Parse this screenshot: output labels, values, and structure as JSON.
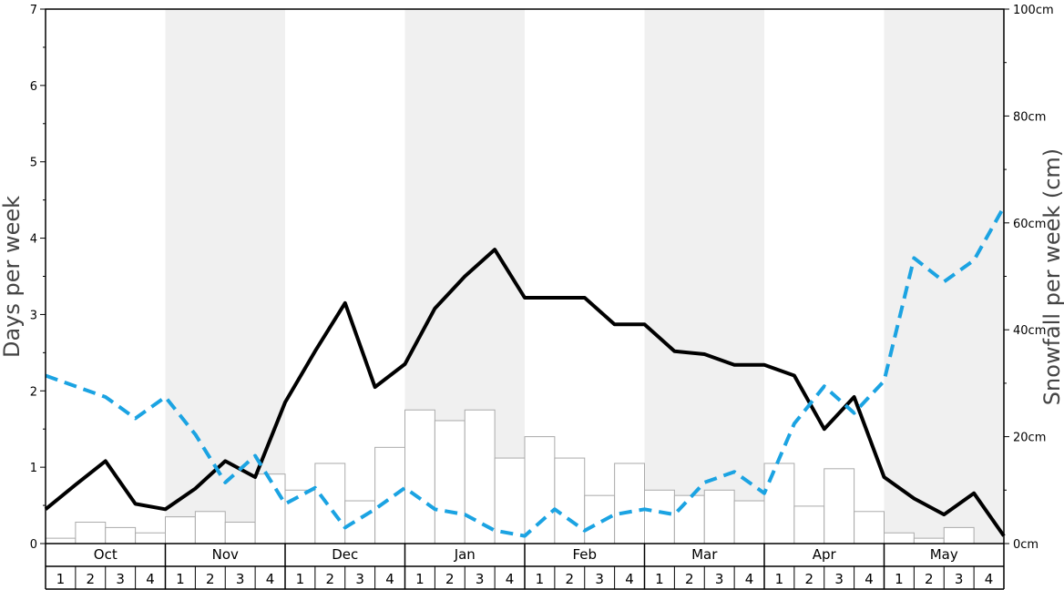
{
  "chart_data": {
    "type": "bar+line",
    "ylabel_left": "Days per week",
    "ylabel_right": "Snowfall per week (cm)",
    "ylim_left": [
      0,
      7
    ],
    "yticks_left": [
      "0",
      "1",
      "2",
      "3",
      "4",
      "5",
      "6",
      "7"
    ],
    "ylim_right": [
      0,
      100
    ],
    "yticks_right": [
      "0cm",
      "20cm",
      "40cm",
      "60cm",
      "80cm",
      "100cm"
    ],
    "months": [
      "Oct",
      "Nov",
      "Dec",
      "Jan",
      "Feb",
      "Mar",
      "Apr",
      "May"
    ],
    "weeks": [
      "1",
      "2",
      "3",
      "4"
    ],
    "shaded_months": [
      "Nov",
      "Jan",
      "Mar",
      "May"
    ],
    "series": [
      {
        "kind": "bar",
        "axis": "right",
        "values": [
          1,
          4,
          3,
          2,
          5,
          6,
          4,
          13,
          10,
          15,
          8,
          18,
          25,
          23,
          25,
          16,
          20,
          16,
          9,
          15,
          10,
          9,
          10,
          8,
          15,
          7,
          14,
          6,
          2,
          1,
          3,
          0
        ]
      },
      {
        "kind": "line",
        "axis": "left",
        "style": "solid",
        "color": "#000000",
        "values": [
          0.45,
          0.77,
          1.08,
          0.52,
          0.45,
          0.72,
          1.08,
          0.87,
          1.85,
          2.52,
          3.15,
          2.05,
          2.35,
          3.08,
          3.5,
          3.85,
          3.22,
          3.22,
          3.22,
          2.87,
          2.87,
          2.52,
          2.48,
          2.34,
          2.34,
          2.2,
          1.5,
          1.92,
          0.87,
          0.59,
          0.38,
          0.66,
          0.1
        ]
      },
      {
        "kind": "line",
        "axis": "left",
        "style": "dashed",
        "color": "#1ba3e2",
        "values": [
          2.2,
          2.06,
          1.92,
          1.64,
          1.92,
          1.43,
          0.8,
          1.15,
          0.52,
          0.73,
          0.21,
          0.45,
          0.73,
          0.45,
          0.38,
          0.17,
          0.1,
          0.45,
          0.17,
          0.38,
          0.45,
          0.38,
          0.8,
          0.94,
          0.66,
          1.57,
          2.06,
          1.71,
          2.13,
          3.74,
          3.43,
          3.71,
          4.41
        ]
      }
    ],
    "colors": {
      "band": "#f0f0f0",
      "bar_fill": "#ffffff",
      "bar_stroke": "#aaaaaa",
      "solid_line": "#000000",
      "dashed_line": "#1ba3e2"
    }
  }
}
